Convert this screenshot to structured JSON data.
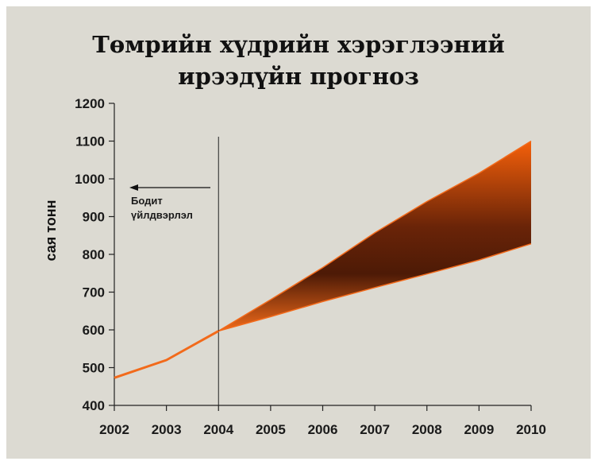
{
  "chart_data": {
    "type": "area",
    "title_lines": [
      "Төмрийн хүдрийн хэрэглээний",
      "ирээдүйн прогноз"
    ],
    "ylabel": "сая тонн",
    "xlabel": "",
    "x": [
      2002,
      2003,
      2004,
      2005,
      2006,
      2007,
      2008,
      2009,
      2010
    ],
    "xlim": [
      2002,
      2010
    ],
    "ylim": [
      400,
      1200
    ],
    "y_ticks": [
      400,
      500,
      600,
      700,
      800,
      900,
      1000,
      1100,
      1200
    ],
    "grid": false,
    "legend": "none",
    "actual_series": {
      "x": [
        2002,
        2003,
        2004
      ],
      "values": [
        473,
        520,
        597
      ]
    },
    "forecast_band": {
      "x": [
        2004,
        2005,
        2006,
        2007,
        2008,
        2009,
        2010
      ],
      "upper": [
        597,
        680,
        765,
        857,
        940,
        1015,
        1100
      ],
      "lower": [
        597,
        635,
        675,
        712,
        748,
        785,
        828
      ]
    },
    "divider_x": 2004,
    "annotation": {
      "lines": [
        "Бодит",
        "үйлдвэрлэл"
      ],
      "arrow": "left"
    },
    "colors": {
      "background": "#dcdad2",
      "line": "#f26a1b",
      "band_light": "#f5600a",
      "band_dark": "#5a1f08",
      "axis": "#222222"
    }
  }
}
